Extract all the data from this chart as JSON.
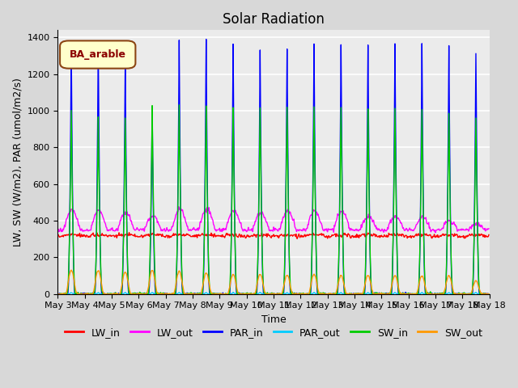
{
  "title": "Solar Radiation",
  "ylabel": "LW, SW (W/m2), PAR (umol/m2/s)",
  "xlabel": "Time",
  "annotation": "BA_arable",
  "ylim": [
    0,
    1440
  ],
  "yticks": [
    0,
    200,
    400,
    600,
    800,
    1000,
    1200,
    1400
  ],
  "n_days": 16,
  "start_day": 3,
  "series_colors": {
    "LW_in": "#ff0000",
    "LW_out": "#ff00ff",
    "PAR_in": "#0000ff",
    "PAR_out": "#00ccff",
    "SW_in": "#00cc00",
    "SW_out": "#ff9900"
  },
  "background_color": "#d8d8d8",
  "plot_area_color": "#ebebeb",
  "legend_box_color": "#ffffcc",
  "legend_box_edge": "#8b4513",
  "annotation_text_color": "#8b0000",
  "grid_color": "#ffffff",
  "title_fontsize": 12,
  "label_fontsize": 9,
  "tick_label_fontsize": 8,
  "legend_fontsize": 9,
  "line_width": 1.0,
  "day_labels": [
    "May 3",
    "May 4",
    "May 5",
    "May 6",
    "May 7",
    "May 8",
    "May 9",
    "May 10",
    "May 11",
    "May 12",
    "May 13",
    "May 14",
    "May 15",
    "May 16",
    "May 17",
    "May 18"
  ]
}
